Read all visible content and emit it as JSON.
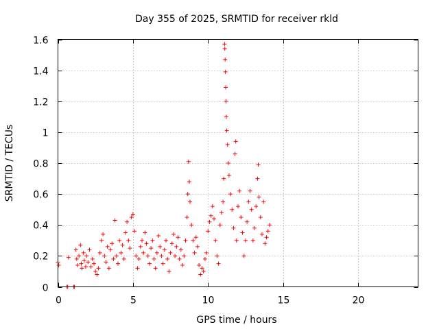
{
  "chart_data": {
    "type": "scatter",
    "title": "Day 355 of 2025, SRMTID for receiver rkld",
    "xlabel": "GPS time / hours",
    "ylabel": "SRMTID / TECUs",
    "xlim": [
      0,
      24
    ],
    "ylim": [
      0,
      1.6
    ],
    "xticks": [
      0,
      5,
      10,
      15,
      20
    ],
    "yticks": [
      0,
      0.2,
      0.4,
      0.6,
      0.8,
      1,
      1.2,
      1.4,
      1.6
    ],
    "xtick_labels": [
      "0",
      "5",
      "10",
      "15",
      "20"
    ],
    "ytick_labels": [
      "0",
      "0.2",
      "0.4",
      "0.6",
      "0.8",
      "1",
      "1.2",
      "1.4",
      "1.6"
    ],
    "grid": true,
    "marker": "plus",
    "series": [
      {
        "name": "SRMTID",
        "color": "#ff0000",
        "points": [
          [
            0.0,
            0.16
          ],
          [
            0.05,
            0.14
          ],
          [
            0.6,
            0.0
          ],
          [
            0.65,
            0.0
          ],
          [
            0.7,
            0.19
          ],
          [
            1.05,
            0.0
          ],
          [
            1.1,
            0.0
          ],
          [
            1.2,
            0.24
          ],
          [
            1.25,
            0.18
          ],
          [
            1.3,
            0.14
          ],
          [
            1.4,
            0.2
          ],
          [
            1.5,
            0.27
          ],
          [
            1.55,
            0.15
          ],
          [
            1.6,
            0.12
          ],
          [
            1.7,
            0.22
          ],
          [
            1.75,
            0.17
          ],
          [
            1.85,
            0.13
          ],
          [
            1.9,
            0.2
          ],
          [
            2.0,
            0.16
          ],
          [
            2.1,
            0.24
          ],
          [
            2.2,
            0.13
          ],
          [
            2.3,
            0.18
          ],
          [
            2.4,
            0.15
          ],
          [
            2.5,
            0.1
          ],
          [
            2.6,
            0.08
          ],
          [
            2.7,
            0.12
          ],
          [
            2.8,
            0.22
          ],
          [
            2.9,
            0.3
          ],
          [
            3.0,
            0.34
          ],
          [
            3.1,
            0.2
          ],
          [
            3.2,
            0.16
          ],
          [
            3.3,
            0.26
          ],
          [
            3.4,
            0.12
          ],
          [
            3.5,
            0.24
          ],
          [
            3.6,
            0.28
          ],
          [
            3.7,
            0.18
          ],
          [
            3.8,
            0.43
          ],
          [
            3.9,
            0.2
          ],
          [
            4.0,
            0.15
          ],
          [
            4.1,
            0.3
          ],
          [
            4.2,
            0.22
          ],
          [
            4.3,
            0.27
          ],
          [
            4.4,
            0.18
          ],
          [
            4.5,
            0.35
          ],
          [
            4.6,
            0.42
          ],
          [
            4.7,
            0.3
          ],
          [
            4.8,
            0.25
          ],
          [
            4.9,
            0.45
          ],
          [
            5.0,
            0.47
          ],
          [
            5.1,
            0.36
          ],
          [
            5.2,
            0.2
          ],
          [
            5.3,
            0.12
          ],
          [
            5.4,
            0.18
          ],
          [
            5.5,
            0.26
          ],
          [
            5.6,
            0.3
          ],
          [
            5.7,
            0.22
          ],
          [
            5.8,
            0.35
          ],
          [
            5.9,
            0.28
          ],
          [
            6.0,
            0.2
          ],
          [
            6.1,
            0.15
          ],
          [
            6.2,
            0.25
          ],
          [
            6.3,
            0.3
          ],
          [
            6.4,
            0.18
          ],
          [
            6.5,
            0.12
          ],
          [
            6.6,
            0.22
          ],
          [
            6.7,
            0.33
          ],
          [
            6.8,
            0.26
          ],
          [
            6.9,
            0.2
          ],
          [
            7.0,
            0.15
          ],
          [
            7.1,
            0.24
          ],
          [
            7.2,
            0.3
          ],
          [
            7.3,
            0.18
          ],
          [
            7.4,
            0.1
          ],
          [
            7.5,
            0.22
          ],
          [
            7.6,
            0.28
          ],
          [
            7.7,
            0.34
          ],
          [
            7.8,
            0.2
          ],
          [
            7.9,
            0.26
          ],
          [
            8.0,
            0.32
          ],
          [
            8.1,
            0.18
          ],
          [
            8.2,
            0.24
          ],
          [
            8.3,
            0.14
          ],
          [
            8.4,
            0.2
          ],
          [
            8.5,
            0.3
          ],
          [
            8.6,
            0.45
          ],
          [
            8.65,
            0.6
          ],
          [
            8.7,
            0.81
          ],
          [
            8.75,
            0.68
          ],
          [
            8.8,
            0.55
          ],
          [
            8.9,
            0.4
          ],
          [
            9.0,
            0.3
          ],
          [
            9.1,
            0.22
          ],
          [
            9.2,
            0.32
          ],
          [
            9.3,
            0.26
          ],
          [
            9.4,
            0.14
          ],
          [
            9.5,
            0.08
          ],
          [
            9.6,
            0.12
          ],
          [
            9.7,
            0.1
          ],
          [
            9.8,
            0.18
          ],
          [
            9.9,
            0.22
          ],
          [
            10.0,
            0.36
          ],
          [
            10.1,
            0.42
          ],
          [
            10.2,
            0.46
          ],
          [
            10.3,
            0.52
          ],
          [
            10.4,
            0.44
          ],
          [
            10.5,
            0.3
          ],
          [
            10.6,
            0.2
          ],
          [
            10.7,
            0.15
          ],
          [
            10.8,
            0.4
          ],
          [
            10.9,
            0.48
          ],
          [
            11.0,
            0.55
          ],
          [
            11.05,
            0.7
          ],
          [
            11.1,
            1.57
          ],
          [
            11.12,
            1.54
          ],
          [
            11.14,
            1.47
          ],
          [
            11.16,
            1.39
          ],
          [
            11.18,
            1.29
          ],
          [
            11.2,
            1.2
          ],
          [
            11.22,
            1.1
          ],
          [
            11.25,
            1.01
          ],
          [
            11.3,
            0.92
          ],
          [
            11.35,
            0.8
          ],
          [
            11.4,
            0.72
          ],
          [
            11.5,
            0.6
          ],
          [
            11.6,
            0.5
          ],
          [
            11.7,
            0.38
          ],
          [
            11.8,
            0.86
          ],
          [
            11.85,
            0.94
          ],
          [
            11.9,
            0.3
          ],
          [
            12.0,
            0.52
          ],
          [
            12.1,
            0.62
          ],
          [
            12.2,
            0.45
          ],
          [
            12.3,
            0.35
          ],
          [
            12.4,
            0.2
          ],
          [
            12.5,
            0.3
          ],
          [
            12.6,
            0.42
          ],
          [
            12.7,
            0.55
          ],
          [
            12.8,
            0.62
          ],
          [
            12.9,
            0.5
          ],
          [
            13.0,
            0.3
          ],
          [
            13.1,
            0.38
          ],
          [
            13.2,
            0.52
          ],
          [
            13.3,
            0.7
          ],
          [
            13.35,
            0.79
          ],
          [
            13.4,
            0.58
          ],
          [
            13.5,
            0.45
          ],
          [
            13.6,
            0.34
          ],
          [
            13.7,
            0.55
          ],
          [
            13.8,
            0.28
          ],
          [
            13.9,
            0.32
          ],
          [
            14.0,
            0.36
          ],
          [
            14.1,
            0.4
          ]
        ]
      }
    ]
  }
}
